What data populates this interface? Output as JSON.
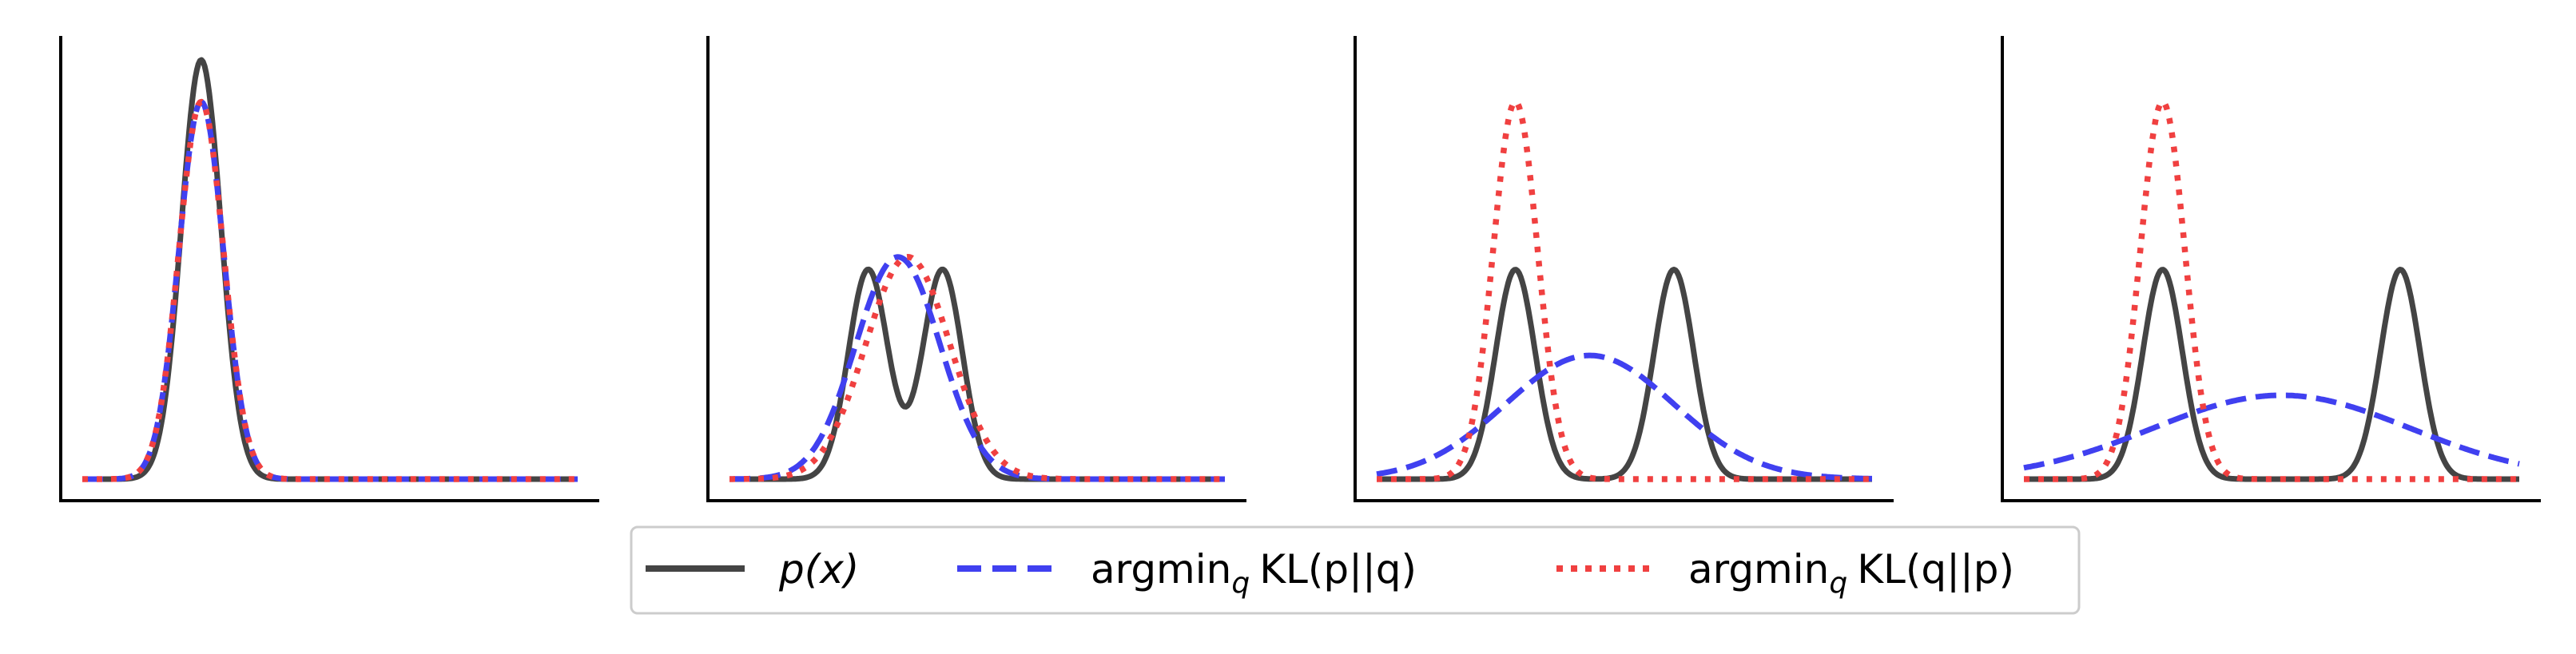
{
  "colors": {
    "p": "#444444",
    "forward": "#4040f0",
    "reverse": "#f04040",
    "axis": "#000000",
    "legend_border": "#cccccc"
  },
  "legend": {
    "placement": "bottom-center",
    "entries": [
      {
        "key": "p",
        "style": "solid",
        "color": "#444444",
        "main": "p(x)"
      },
      {
        "key": "forward",
        "style": "dashed",
        "color": "#4040f0",
        "main": "argmin",
        "sub": "q",
        "tail": "KL(p||q)"
      },
      {
        "key": "reverse",
        "style": "dotted",
        "color": "#f04040",
        "main": "argmin",
        "sub": "q",
        "tail": "KL(q||p)"
      }
    ]
  },
  "chart_data": [
    {
      "type": "line",
      "title": "",
      "xlabel": "",
      "ylabel": "",
      "xlim": [
        0,
        10
      ],
      "ylim": [
        0,
        1.1
      ],
      "ticks": false,
      "grid": false,
      "series": [
        {
          "key": "p",
          "components": [
            {
              "w": 1.0,
              "mu": 2.4,
              "sigma": 0.4
            }
          ]
        },
        {
          "key": "forward",
          "components": [
            {
              "w": 0.9,
              "mu": 2.4,
              "sigma": 0.45
            }
          ]
        },
        {
          "key": "reverse",
          "components": [
            {
              "w": 0.9,
              "mu": 2.4,
              "sigma": 0.45
            }
          ]
        }
      ]
    },
    {
      "type": "line",
      "title": "",
      "xlabel": "",
      "ylabel": "",
      "xlim": [
        0,
        10
      ],
      "ylim": [
        0,
        1.1
      ],
      "ticks": false,
      "grid": false,
      "series": [
        {
          "key": "p",
          "components": [
            {
              "w": 0.5,
              "mu": 2.8,
              "sigma": 0.4
            },
            {
              "w": 0.5,
              "mu": 4.3,
              "sigma": 0.4
            }
          ]
        },
        {
          "key": "forward",
          "components": [
            {
              "w": 0.53,
              "mu": 3.4,
              "sigma": 0.85
            }
          ]
        },
        {
          "key": "reverse",
          "components": [
            {
              "w": 0.53,
              "mu": 3.6,
              "sigma": 0.85
            }
          ]
        }
      ]
    },
    {
      "type": "line",
      "title": "",
      "xlabel": "",
      "ylabel": "",
      "xlim": [
        0,
        10
      ],
      "ylim": [
        0,
        1.1
      ],
      "ticks": false,
      "grid": false,
      "series": [
        {
          "key": "p",
          "components": [
            {
              "w": 0.5,
              "mu": 2.8,
              "sigma": 0.4
            },
            {
              "w": 0.5,
              "mu": 6.0,
              "sigma": 0.4
            }
          ]
        },
        {
          "key": "forward",
          "components": [
            {
              "w": 0.295,
              "mu": 4.3,
              "sigma": 1.7
            }
          ]
        },
        {
          "key": "reverse",
          "components": [
            {
              "w": 0.9,
              "mu": 2.8,
              "sigma": 0.45
            }
          ]
        }
      ]
    },
    {
      "type": "line",
      "title": "",
      "xlabel": "",
      "ylabel": "",
      "xlim": [
        0,
        10
      ],
      "ylim": [
        0,
        1.1
      ],
      "ticks": false,
      "grid": false,
      "series": [
        {
          "key": "p",
          "components": [
            {
              "w": 0.5,
              "mu": 2.8,
              "sigma": 0.4
            },
            {
              "w": 0.5,
              "mu": 7.6,
              "sigma": 0.4
            }
          ]
        },
        {
          "key": "forward",
          "components": [
            {
              "w": 0.2,
              "mu": 5.2,
              "sigma": 2.6
            }
          ]
        },
        {
          "key": "reverse",
          "components": [
            {
              "w": 0.9,
              "mu": 2.8,
              "sigma": 0.45
            }
          ]
        }
      ]
    }
  ]
}
